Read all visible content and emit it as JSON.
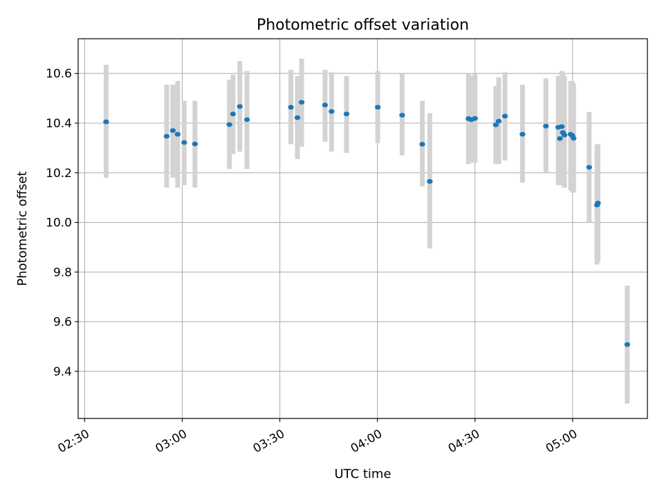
{
  "colors": {
    "point": "#1f77b4",
    "errorbar": "#d3d3d3",
    "grid": "#b0b0b0"
  },
  "chart_data": {
    "type": "scatter",
    "title": "Photometric offset variation",
    "xlabel": "UTC time",
    "ylabel": "Photometric offset",
    "grid": true,
    "x_unit": "minutes since 00:00 UTC",
    "xlim": [
      148,
      323
    ],
    "ylim": [
      9.21,
      10.74
    ],
    "xticks": [
      {
        "value": 150,
        "label": "02:30"
      },
      {
        "value": 180,
        "label": "03:00"
      },
      {
        "value": 210,
        "label": "03:30"
      },
      {
        "value": 240,
        "label": "04:00"
      },
      {
        "value": 270,
        "label": "04:30"
      },
      {
        "value": 300,
        "label": "05:00"
      }
    ],
    "yticks": [
      {
        "value": 9.4,
        "label": "9.4"
      },
      {
        "value": 9.6,
        "label": "9.6"
      },
      {
        "value": 9.8,
        "label": "9.8"
      },
      {
        "value": 10.0,
        "label": "10.0"
      },
      {
        "value": 10.2,
        "label": "10.2"
      },
      {
        "value": 10.4,
        "label": "10.4"
      },
      {
        "value": 10.6,
        "label": "10.6"
      }
    ],
    "series": [
      {
        "name": "Photometric offset",
        "points": [
          {
            "x": 156.6,
            "y": 10.405,
            "ylo": 10.18,
            "yhi": 10.635
          },
          {
            "x": 175.2,
            "y": 10.347,
            "ylo": 10.14,
            "yhi": 10.555
          },
          {
            "x": 177.1,
            "y": 10.37,
            "ylo": 10.18,
            "yhi": 10.555
          },
          {
            "x": 178.6,
            "y": 10.355,
            "ylo": 10.14,
            "yhi": 10.57
          },
          {
            "x": 180.6,
            "y": 10.322,
            "ylo": 10.15,
            "yhi": 10.49
          },
          {
            "x": 183.9,
            "y": 10.316,
            "ylo": 10.14,
            "yhi": 10.49
          },
          {
            "x": 194.5,
            "y": 10.394,
            "ylo": 10.215,
            "yhi": 10.575
          },
          {
            "x": 195.6,
            "y": 10.437,
            "ylo": 10.275,
            "yhi": 10.595
          },
          {
            "x": 197.7,
            "y": 10.467,
            "ylo": 10.285,
            "yhi": 10.65
          },
          {
            "x": 199.9,
            "y": 10.414,
            "ylo": 10.215,
            "yhi": 10.61
          },
          {
            "x": 213.4,
            "y": 10.464,
            "ylo": 10.315,
            "yhi": 10.615
          },
          {
            "x": 215.4,
            "y": 10.422,
            "ylo": 10.255,
            "yhi": 10.59
          },
          {
            "x": 216.7,
            "y": 10.484,
            "ylo": 10.305,
            "yhi": 10.66
          },
          {
            "x": 223.9,
            "y": 10.473,
            "ylo": 10.325,
            "yhi": 10.615
          },
          {
            "x": 225.9,
            "y": 10.447,
            "ylo": 10.285,
            "yhi": 10.605
          },
          {
            "x": 230.5,
            "y": 10.437,
            "ylo": 10.28,
            "yhi": 10.59
          },
          {
            "x": 240.1,
            "y": 10.464,
            "ylo": 10.32,
            "yhi": 10.61
          },
          {
            "x": 247.6,
            "y": 10.432,
            "ylo": 10.27,
            "yhi": 10.6
          },
          {
            "x": 253.8,
            "y": 10.315,
            "ylo": 10.145,
            "yhi": 10.49
          },
          {
            "x": 256.1,
            "y": 10.165,
            "ylo": 9.895,
            "yhi": 10.44
          },
          {
            "x": 268.0,
            "y": 10.418,
            "ylo": 10.235,
            "yhi": 10.6
          },
          {
            "x": 268.9,
            "y": 10.414,
            "ylo": 10.24,
            "yhi": 10.59
          },
          {
            "x": 270.0,
            "y": 10.419,
            "ylo": 10.24,
            "yhi": 10.6
          },
          {
            "x": 276.4,
            "y": 10.393,
            "ylo": 10.235,
            "yhi": 10.55
          },
          {
            "x": 277.3,
            "y": 10.408,
            "ylo": 10.235,
            "yhi": 10.585
          },
          {
            "x": 279.2,
            "y": 10.428,
            "ylo": 10.25,
            "yhi": 10.605
          },
          {
            "x": 284.6,
            "y": 10.355,
            "ylo": 10.16,
            "yhi": 10.555
          },
          {
            "x": 291.8,
            "y": 10.388,
            "ylo": 10.2,
            "yhi": 10.58
          },
          {
            "x": 295.6,
            "y": 10.383,
            "ylo": 10.15,
            "yhi": 10.59
          },
          {
            "x": 296.1,
            "y": 10.338,
            "ylo": 10.15,
            "yhi": 10.59
          },
          {
            "x": 296.7,
            "y": 10.386,
            "ylo": 10.15,
            "yhi": 10.61
          },
          {
            "x": 297.0,
            "y": 10.362,
            "ylo": 10.15,
            "yhi": 10.6
          },
          {
            "x": 297.5,
            "y": 10.352,
            "ylo": 10.14,
            "yhi": 10.59
          },
          {
            "x": 299.4,
            "y": 10.355,
            "ylo": 10.13,
            "yhi": 10.57
          },
          {
            "x": 299.9,
            "y": 10.35,
            "ylo": 10.12,
            "yhi": 10.57
          },
          {
            "x": 300.3,
            "y": 10.339,
            "ylo": 10.12,
            "yhi": 10.56
          },
          {
            "x": 305.1,
            "y": 10.222,
            "ylo": 10.0,
            "yhi": 10.445
          },
          {
            "x": 307.5,
            "y": 10.07,
            "ylo": 9.83,
            "yhi": 10.315
          },
          {
            "x": 307.8,
            "y": 10.078,
            "ylo": 9.84,
            "yhi": 10.315
          },
          {
            "x": 316.8,
            "y": 9.508,
            "ylo": 9.27,
            "yhi": 9.745
          }
        ]
      }
    ]
  }
}
